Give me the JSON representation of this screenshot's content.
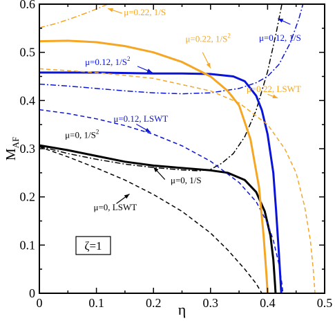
{
  "chart_data": {
    "type": "line",
    "xlabel": "η",
    "ylabel": "M",
    "ylabel_sub": "AF",
    "xlim": [
      0,
      0.5
    ],
    "ylim": [
      0,
      0.6
    ],
    "xticks": [
      0,
      0.1,
      0.2,
      0.3,
      0.4,
      0.5
    ],
    "xtick_labels": [
      "0",
      "0.1",
      "0.2",
      "0.3",
      "0.4",
      "0.5"
    ],
    "yticks": [
      0,
      0.1,
      0.2,
      0.3,
      0.4,
      0.5,
      0.6
    ],
    "ytick_labels": [
      "0",
      "0.1",
      "0.2",
      "0.3",
      "0.4",
      "0.5",
      "0.6"
    ],
    "grid": false,
    "inset_label": "ζ=1",
    "colors": {
      "mu0": "#000000",
      "mu012": "#0a14d8",
      "mu022": "#f5a623"
    },
    "series": [
      {
        "id": "mu0_lswt",
        "color_key": "mu0",
        "style": "dashed",
        "width": 1.5,
        "points": [
          [
            0,
            0.304
          ],
          [
            0.05,
            0.283
          ],
          [
            0.1,
            0.26
          ],
          [
            0.15,
            0.235
          ],
          [
            0.2,
            0.205
          ],
          [
            0.25,
            0.17
          ],
          [
            0.3,
            0.125
          ],
          [
            0.33,
            0.09
          ],
          [
            0.36,
            0.05
          ],
          [
            0.38,
            0.02
          ],
          [
            0.39,
            0
          ]
        ]
      },
      {
        "id": "mu0_1S",
        "color_key": "mu0",
        "style": "dashdot",
        "width": 1.5,
        "points": [
          [
            0,
            0.305
          ],
          [
            0.05,
            0.29
          ],
          [
            0.1,
            0.278
          ],
          [
            0.15,
            0.268
          ],
          [
            0.2,
            0.261
          ],
          [
            0.25,
            0.256
          ],
          [
            0.28,
            0.254
          ],
          [
            0.3,
            0.257
          ],
          [
            0.32,
            0.27
          ],
          [
            0.34,
            0.29
          ],
          [
            0.36,
            0.325
          ],
          [
            0.38,
            0.38
          ],
          [
            0.4,
            0.46
          ],
          [
            0.415,
            0.54
          ],
          [
            0.425,
            0.6
          ]
        ]
      },
      {
        "id": "mu0_1S2",
        "color_key": "mu0",
        "style": "solid",
        "width": 3,
        "points": [
          [
            0,
            0.307
          ],
          [
            0.05,
            0.297
          ],
          [
            0.1,
            0.285
          ],
          [
            0.15,
            0.273
          ],
          [
            0.2,
            0.265
          ],
          [
            0.25,
            0.26
          ],
          [
            0.3,
            0.255
          ],
          [
            0.33,
            0.25
          ],
          [
            0.36,
            0.235
          ],
          [
            0.38,
            0.21
          ],
          [
            0.395,
            0.17
          ],
          [
            0.405,
            0.12
          ],
          [
            0.41,
            0.07
          ],
          [
            0.413,
            0.02
          ],
          [
            0.414,
            0
          ]
        ]
      },
      {
        "id": "mu012_lswt",
        "color_key": "mu012",
        "style": "dashed",
        "width": 1.5,
        "points": [
          [
            0,
            0.381
          ],
          [
            0.05,
            0.373
          ],
          [
            0.1,
            0.362
          ],
          [
            0.15,
            0.348
          ],
          [
            0.2,
            0.33
          ],
          [
            0.25,
            0.306
          ],
          [
            0.3,
            0.274
          ],
          [
            0.35,
            0.23
          ],
          [
            0.38,
            0.19
          ],
          [
            0.4,
            0.145
          ],
          [
            0.41,
            0.11
          ],
          [
            0.42,
            0.06
          ],
          [
            0.425,
            0.02
          ],
          [
            0.427,
            0
          ]
        ]
      },
      {
        "id": "mu012_1S",
        "color_key": "mu012",
        "style": "dashdot",
        "width": 1.5,
        "points": [
          [
            0,
            0.434
          ],
          [
            0.05,
            0.43
          ],
          [
            0.1,
            0.425
          ],
          [
            0.15,
            0.42
          ],
          [
            0.2,
            0.416
          ],
          [
            0.25,
            0.414
          ],
          [
            0.3,
            0.416
          ],
          [
            0.35,
            0.425
          ],
          [
            0.38,
            0.437
          ],
          [
            0.4,
            0.45
          ],
          [
            0.42,
            0.475
          ],
          [
            0.44,
            0.52
          ],
          [
            0.455,
            0.57
          ],
          [
            0.462,
            0.6
          ]
        ]
      },
      {
        "id": "mu012_1S2",
        "color_key": "mu012",
        "style": "solid",
        "width": 3,
        "points": [
          [
            0,
            0.458
          ],
          [
            0.1,
            0.458
          ],
          [
            0.2,
            0.456
          ],
          [
            0.25,
            0.456
          ],
          [
            0.3,
            0.455
          ],
          [
            0.34,
            0.45
          ],
          [
            0.36,
            0.44
          ],
          [
            0.38,
            0.41
          ],
          [
            0.39,
            0.38
          ],
          [
            0.4,
            0.33
          ],
          [
            0.41,
            0.25
          ],
          [
            0.415,
            0.17
          ],
          [
            0.42,
            0.08
          ],
          [
            0.424,
            0
          ]
        ]
      },
      {
        "id": "mu022_lswt",
        "color_key": "mu022",
        "style": "dashed",
        "width": 1.5,
        "points": [
          [
            0,
            0.466
          ],
          [
            0.1,
            0.458
          ],
          [
            0.2,
            0.446
          ],
          [
            0.3,
            0.42
          ],
          [
            0.35,
            0.395
          ],
          [
            0.4,
            0.35
          ],
          [
            0.43,
            0.3
          ],
          [
            0.45,
            0.25
          ],
          [
            0.465,
            0.18
          ],
          [
            0.475,
            0.11
          ],
          [
            0.48,
            0.05
          ],
          [
            0.483,
            0
          ]
        ]
      },
      {
        "id": "mu022_1S",
        "color_key": "mu022",
        "style": "dashdot",
        "width": 1.5,
        "points": [
          [
            0,
            0.551
          ],
          [
            0.03,
            0.56
          ],
          [
            0.06,
            0.572
          ],
          [
            0.09,
            0.585
          ],
          [
            0.12,
            0.6
          ]
        ]
      },
      {
        "id": "mu022_1S2",
        "color_key": "mu022",
        "style": "solid",
        "width": 3,
        "points": [
          [
            0,
            0.523
          ],
          [
            0.05,
            0.524
          ],
          [
            0.1,
            0.521
          ],
          [
            0.15,
            0.513
          ],
          [
            0.2,
            0.5
          ],
          [
            0.25,
            0.48
          ],
          [
            0.3,
            0.45
          ],
          [
            0.33,
            0.42
          ],
          [
            0.35,
            0.39
          ],
          [
            0.37,
            0.32
          ],
          [
            0.385,
            0.22
          ],
          [
            0.393,
            0.12
          ],
          [
            0.398,
            0.04
          ],
          [
            0.4,
            0
          ]
        ]
      }
    ],
    "annotations": [
      {
        "id": "mu0_1S2",
        "text": "μ=0, 1/S",
        "sup": "2",
        "color_key": "mu0",
        "at": [
          0.045,
          0.322
        ],
        "anchor": "start",
        "arrow": null
      },
      {
        "id": "mu0_1S",
        "text": "μ=0, 1/S",
        "sup": "",
        "color_key": "mu0",
        "at": [
          0.23,
          0.228
        ],
        "anchor": "start",
        "arrow": [
          [
            0.22,
            0.236
          ],
          [
            0.2,
            0.262
          ]
        ]
      },
      {
        "id": "mu0_lswt",
        "text": "μ=0, LSWT",
        "sup": "",
        "color_key": "mu0",
        "at": [
          0.095,
          0.172
        ],
        "anchor": "start",
        "arrow": [
          [
            0.135,
            0.186
          ],
          [
            0.158,
            0.206
          ]
        ]
      },
      {
        "id": "mu012_lswt",
        "text": "μ=0.12, LSWT",
        "sup": "",
        "color_key": "mu012",
        "at": [
          0.13,
          0.356
        ],
        "anchor": "start",
        "arrow": [
          [
            0.17,
            0.351
          ],
          [
            0.195,
            0.334
          ]
        ]
      },
      {
        "id": "mu012_1S2",
        "text": "μ=0.12, 1/S",
        "sup": "2",
        "color_key": "mu012",
        "at": [
          0.08,
          0.474
        ],
        "anchor": "start",
        "arrow": [
          [
            0.172,
            0.471
          ],
          [
            0.198,
            0.458
          ]
        ]
      },
      {
        "id": "mu012_1S",
        "text": "μ=0.12, 1/S",
        "sup": "",
        "color_key": "mu012",
        "at": [
          0.385,
          0.524
        ],
        "anchor": "start",
        "arrow": [
          [
            0.44,
            0.558
          ],
          [
            0.418,
            0.57
          ]
        ]
      },
      {
        "id": "mu022_1S",
        "text": "μ=0.22, 1/S",
        "sup": "",
        "color_key": "mu022",
        "at": [
          0.148,
          0.577
        ],
        "anchor": "start",
        "arrow": [
          [
            0.145,
            0.581
          ],
          [
            0.12,
            0.591
          ]
        ]
      },
      {
        "id": "mu022_1S2",
        "text": "μ=0.22, 1/S",
        "sup": "2",
        "color_key": "mu022",
        "at": [
          0.256,
          0.522
        ],
        "anchor": "start",
        "arrow": [
          [
            0.286,
            0.5
          ],
          [
            0.3,
            0.467
          ]
        ]
      },
      {
        "id": "mu022_lswt",
        "text": "μ=0.22, LSWT",
        "sup": "",
        "color_key": "mu022",
        "at": [
          0.363,
          0.418
        ],
        "anchor": "start",
        "arrow": [
          [
            0.4,
            0.413
          ],
          [
            0.418,
            0.405
          ]
        ]
      }
    ]
  }
}
